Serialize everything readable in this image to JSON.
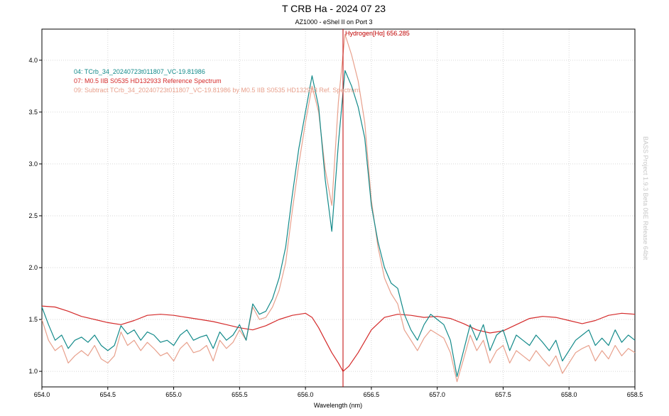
{
  "chart_data": {
    "type": "line",
    "title": "T CRB Ha -  2024 07 23",
    "subtitle": "AZ1000 - eShel II on Port 3",
    "xlabel": "Wavelength (nm)",
    "ylabel": "",
    "xlim": [
      654.0,
      658.5
    ],
    "ylim": [
      0.85,
      4.3
    ],
    "grid": true,
    "legend_position": "top-left",
    "x_ticks": [
      "654.0",
      "654.5",
      "655.0",
      "655.5",
      "656.0",
      "656.5",
      "657.0",
      "657.5",
      "658.0",
      "658.5"
    ],
    "y_ticks": [
      "1.0",
      "1.5",
      "2.0",
      "2.5",
      "3.0",
      "3.5",
      "4.0"
    ],
    "x_tick_values": [
      654.0,
      654.5,
      655.0,
      655.5,
      656.0,
      656.5,
      657.0,
      657.5,
      658.0,
      658.5
    ],
    "y_tick_values": [
      1.0,
      1.5,
      2.0,
      2.5,
      3.0,
      3.5,
      4.0
    ],
    "marker": {
      "label": "Hydrogen[Hα] 656.285",
      "x": 656.285,
      "color": "#c00000"
    },
    "side_text": "BASS Project 1.9.3 Beta 06E Release 64bit",
    "series": [
      {
        "name": "04: TCrb_34_20240723t011807_VC-19.81986",
        "color": "#138a8a",
        "x": [
          654.0,
          654.05,
          654.1,
          654.15,
          654.2,
          654.25,
          654.3,
          654.35,
          654.4,
          654.45,
          654.5,
          654.55,
          654.6,
          654.65,
          654.7,
          654.75,
          654.8,
          654.85,
          654.9,
          654.95,
          655.0,
          655.05,
          655.1,
          655.15,
          655.2,
          655.25,
          655.3,
          655.35,
          655.4,
          655.45,
          655.5,
          655.55,
          655.6,
          655.65,
          655.7,
          655.75,
          655.8,
          655.85,
          655.9,
          655.95,
          656.0,
          656.05,
          656.1,
          656.15,
          656.2,
          656.25,
          656.3,
          656.35,
          656.4,
          656.45,
          656.5,
          656.55,
          656.6,
          656.65,
          656.7,
          656.75,
          656.8,
          656.85,
          656.9,
          656.95,
          657.0,
          657.05,
          657.1,
          657.15,
          657.2,
          657.25,
          657.3,
          657.35,
          657.4,
          657.45,
          657.5,
          657.55,
          657.6,
          657.65,
          657.7,
          657.75,
          657.8,
          657.85,
          657.9,
          657.95,
          658.0,
          658.05,
          658.1,
          658.15,
          658.2,
          658.25,
          658.3,
          658.35,
          658.4,
          658.45,
          658.5
        ],
        "values": [
          1.62,
          1.45,
          1.3,
          1.35,
          1.22,
          1.3,
          1.33,
          1.28,
          1.35,
          1.25,
          1.2,
          1.25,
          1.44,
          1.36,
          1.4,
          1.3,
          1.38,
          1.35,
          1.28,
          1.3,
          1.25,
          1.35,
          1.4,
          1.3,
          1.33,
          1.35,
          1.22,
          1.38,
          1.3,
          1.35,
          1.45,
          1.3,
          1.65,
          1.55,
          1.58,
          1.7,
          1.9,
          2.2,
          2.7,
          3.15,
          3.5,
          3.85,
          3.55,
          2.85,
          2.35,
          3.2,
          3.9,
          3.75,
          3.55,
          3.25,
          2.6,
          2.25,
          2.0,
          1.85,
          1.8,
          1.55,
          1.4,
          1.3,
          1.45,
          1.55,
          1.5,
          1.45,
          1.3,
          0.95,
          1.2,
          1.45,
          1.3,
          1.45,
          1.2,
          1.35,
          1.4,
          1.2,
          1.35,
          1.3,
          1.25,
          1.35,
          1.28,
          1.2,
          1.3,
          1.1,
          1.2,
          1.3,
          1.35,
          1.4,
          1.25,
          1.32,
          1.25,
          1.4,
          1.28,
          1.35,
          1.3
        ]
      },
      {
        "name": "07: M0.5 IIB S0535 HD132933 Reference Spectrum",
        "color": "#d42a2a",
        "x": [
          654.0,
          654.1,
          654.2,
          654.3,
          654.4,
          654.5,
          654.6,
          654.7,
          654.8,
          654.9,
          655.0,
          655.1,
          655.2,
          655.3,
          655.4,
          655.5,
          655.6,
          655.7,
          655.8,
          655.9,
          656.0,
          656.05,
          656.1,
          656.15,
          656.2,
          656.25,
          656.285,
          656.33,
          656.4,
          656.5,
          656.6,
          656.7,
          656.8,
          656.9,
          657.0,
          657.1,
          657.2,
          657.3,
          657.4,
          657.5,
          657.6,
          657.7,
          657.8,
          657.9,
          658.0,
          658.1,
          658.2,
          658.3,
          658.4,
          658.5
        ],
        "values": [
          1.63,
          1.62,
          1.58,
          1.53,
          1.5,
          1.47,
          1.45,
          1.49,
          1.54,
          1.55,
          1.54,
          1.52,
          1.5,
          1.48,
          1.45,
          1.42,
          1.4,
          1.44,
          1.5,
          1.54,
          1.56,
          1.52,
          1.42,
          1.3,
          1.18,
          1.08,
          1.0,
          1.05,
          1.18,
          1.4,
          1.52,
          1.55,
          1.54,
          1.52,
          1.53,
          1.51,
          1.46,
          1.4,
          1.37,
          1.39,
          1.45,
          1.51,
          1.53,
          1.52,
          1.49,
          1.46,
          1.49,
          1.54,
          1.56,
          1.55
        ]
      },
      {
        "name": "09: Subtract TCrb_34_20240723t011807_VC-19.81986 by M0.5 IIB S0535 HD132933 Ref. Spectrum",
        "color": "#e8a08c",
        "x": [
          654.0,
          654.05,
          654.1,
          654.15,
          654.2,
          654.25,
          654.3,
          654.35,
          654.4,
          654.45,
          654.5,
          654.55,
          654.6,
          654.65,
          654.7,
          654.75,
          654.8,
          654.85,
          654.9,
          654.95,
          655.0,
          655.05,
          655.1,
          655.15,
          655.2,
          655.25,
          655.3,
          655.35,
          655.4,
          655.45,
          655.5,
          655.55,
          655.6,
          655.65,
          655.7,
          655.75,
          655.8,
          655.85,
          655.9,
          655.95,
          656.0,
          656.05,
          656.1,
          656.15,
          656.2,
          656.25,
          656.3,
          656.35,
          656.4,
          656.45,
          656.5,
          656.55,
          656.6,
          656.65,
          656.7,
          656.75,
          656.8,
          656.85,
          656.9,
          656.95,
          657.0,
          657.05,
          657.1,
          657.15,
          657.2,
          657.25,
          657.3,
          657.35,
          657.4,
          657.45,
          657.5,
          657.55,
          657.6,
          657.65,
          657.7,
          657.75,
          657.8,
          657.85,
          657.9,
          657.95,
          658.0,
          658.05,
          658.1,
          658.15,
          658.2,
          658.25,
          658.3,
          658.35,
          658.4,
          658.45,
          658.5
        ],
        "values": [
          1.5,
          1.3,
          1.2,
          1.25,
          1.08,
          1.15,
          1.2,
          1.15,
          1.25,
          1.12,
          1.08,
          1.15,
          1.38,
          1.25,
          1.3,
          1.2,
          1.28,
          1.22,
          1.15,
          1.18,
          1.1,
          1.22,
          1.28,
          1.18,
          1.2,
          1.25,
          1.1,
          1.3,
          1.22,
          1.28,
          1.4,
          1.3,
          1.62,
          1.5,
          1.52,
          1.62,
          1.78,
          2.05,
          2.55,
          3.0,
          3.4,
          3.75,
          3.5,
          2.95,
          2.6,
          3.6,
          4.25,
          4.05,
          3.8,
          3.4,
          2.65,
          2.2,
          1.9,
          1.75,
          1.65,
          1.4,
          1.3,
          1.2,
          1.32,
          1.4,
          1.36,
          1.32,
          1.18,
          0.9,
          1.12,
          1.35,
          1.2,
          1.3,
          1.08,
          1.2,
          1.25,
          1.08,
          1.2,
          1.15,
          1.1,
          1.2,
          1.12,
          1.05,
          1.15,
          0.98,
          1.08,
          1.18,
          1.22,
          1.25,
          1.1,
          1.2,
          1.12,
          1.25,
          1.15,
          1.22,
          1.18
        ]
      }
    ]
  }
}
